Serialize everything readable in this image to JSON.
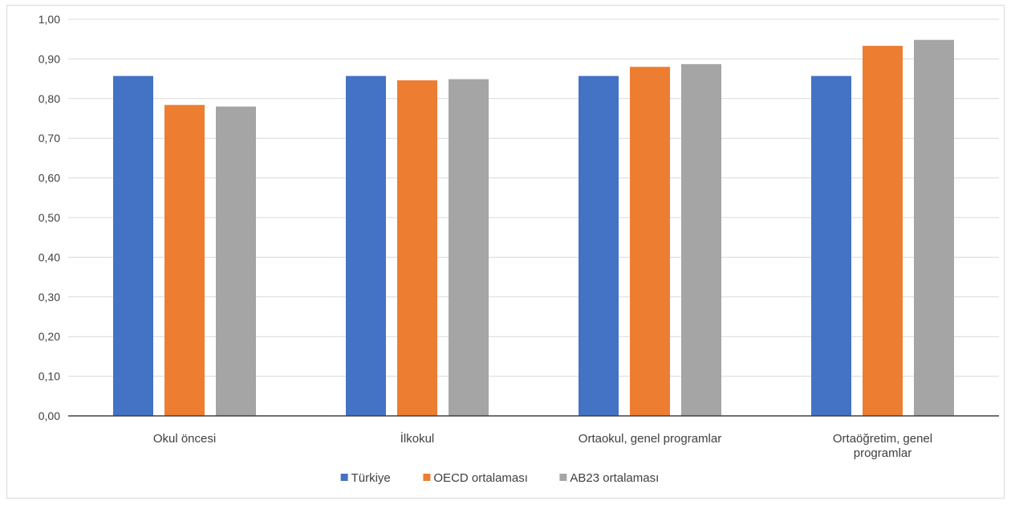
{
  "chart_data": {
    "type": "bar",
    "title": "",
    "xlabel": "",
    "ylabel": "",
    "ylim": [
      0,
      1.0
    ],
    "ytick_step": 0.1,
    "ytick_labels": [
      "0,00",
      "0,10",
      "0,20",
      "0,30",
      "0,40",
      "0,50",
      "0,60",
      "0,70",
      "0,80",
      "0,90",
      "1,00"
    ],
    "grid": true,
    "legend_position": "bottom",
    "categories": [
      "Okul öncesi",
      "İlkokul",
      "Ortaokul, genel programlar",
      "Ortaöğretim, genel programlar"
    ],
    "category_lines": [
      [
        "Okul öncesi"
      ],
      [
        "İlkokul"
      ],
      [
        "Ortaokul, genel programlar"
      ],
      [
        "Ortaöğretim, genel",
        "programlar"
      ]
    ],
    "series": [
      {
        "name": "Türkiye",
        "color": "#4472c4",
        "values": [
          0.857,
          0.857,
          0.857,
          0.857
        ]
      },
      {
        "name": "OECD ortalaması",
        "color": "#ed7d31",
        "values": [
          0.784,
          0.846,
          0.88,
          0.933
        ]
      },
      {
        "name": "AB23 ortalaması",
        "color": "#a5a5a5",
        "values": [
          0.78,
          0.849,
          0.887,
          0.948
        ]
      }
    ]
  }
}
